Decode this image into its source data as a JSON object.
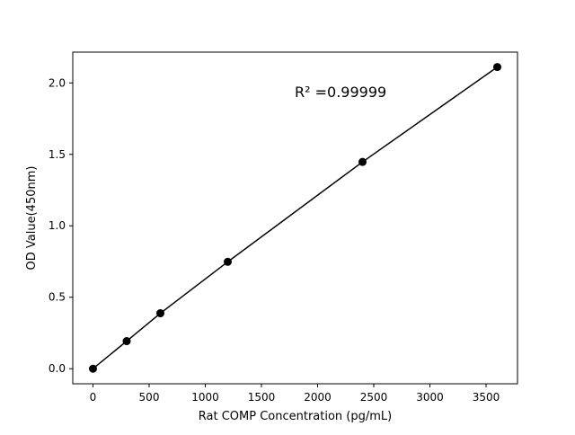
{
  "chart_data": {
    "type": "line",
    "title": "",
    "xlabel": "Rat COMP Concentration (pg/mL)",
    "ylabel": "OD Value(450nm)",
    "xlim": [
      -180,
      3780
    ],
    "ylim": [
      -0.1055,
      2.2155
    ],
    "xticks": [
      0,
      500,
      1000,
      1500,
      2000,
      2500,
      3000,
      3500
    ],
    "yticks": [
      0.0,
      0.5,
      1.0,
      1.5,
      2.0
    ],
    "xtick_labels": [
      "0",
      "500",
      "1000",
      "1500",
      "2000",
      "2500",
      "3000",
      "3500"
    ],
    "ytick_labels": [
      "0.0",
      "0.5",
      "1.0",
      "1.5",
      "2.0"
    ],
    "grid": false,
    "series": [
      {
        "x": [
          0,
          300,
          600,
          1200,
          2400,
          3600
        ],
        "y": [
          0.0,
          0.193,
          0.388,
          0.748,
          1.447,
          2.111
        ],
        "color": "#000000",
        "marker": "circle"
      }
    ],
    "annotation": "R² =0.99999"
  }
}
